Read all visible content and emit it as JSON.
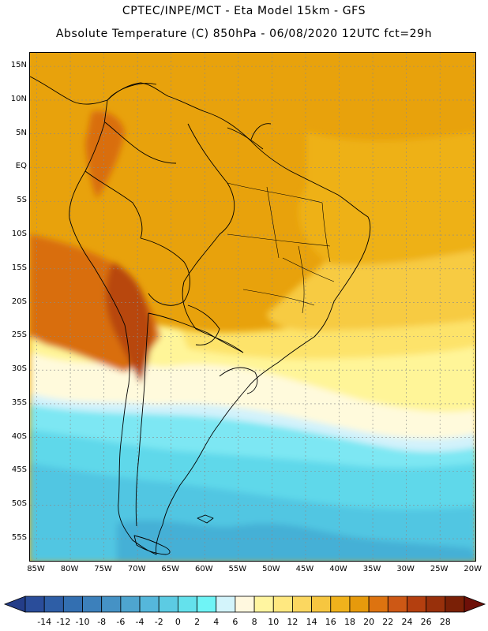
{
  "header": {
    "line1": "CPTEC/INPE/MCT -  Eta Model 15km - GFS",
    "line2": "Absolute Temperature (C) 850hPa - 06/08/2020 12UTC fct=29h"
  },
  "map": {
    "lon_range": [
      -86,
      -19.5
    ],
    "lat_range": [
      -58.5,
      17
    ],
    "lat_labels": [
      {
        "value": 15,
        "text": "15N"
      },
      {
        "value": 10,
        "text": "10N"
      },
      {
        "value": 5,
        "text": "5N"
      },
      {
        "value": 0,
        "text": "EQ"
      },
      {
        "value": -5,
        "text": "5S"
      },
      {
        "value": -10,
        "text": "10S"
      },
      {
        "value": -15,
        "text": "15S"
      },
      {
        "value": -20,
        "text": "20S"
      },
      {
        "value": -25,
        "text": "25S"
      },
      {
        "value": -30,
        "text": "30S"
      },
      {
        "value": -35,
        "text": "35S"
      },
      {
        "value": -40,
        "text": "40S"
      },
      {
        "value": -45,
        "text": "45S"
      },
      {
        "value": -50,
        "text": "50S"
      },
      {
        "value": -55,
        "text": "55S"
      }
    ],
    "lon_labels": [
      {
        "value": -85,
        "text": "85W"
      },
      {
        "value": -80,
        "text": "80W"
      },
      {
        "value": -75,
        "text": "75W"
      },
      {
        "value": -70,
        "text": "70W"
      },
      {
        "value": -65,
        "text": "65W"
      },
      {
        "value": -60,
        "text": "60W"
      },
      {
        "value": -55,
        "text": "55W"
      },
      {
        "value": -50,
        "text": "50W"
      },
      {
        "value": -45,
        "text": "45W"
      },
      {
        "value": -40,
        "text": "40W"
      },
      {
        "value": -35,
        "text": "35W"
      },
      {
        "value": -30,
        "text": "30W"
      },
      {
        "value": -25,
        "text": "25W"
      },
      {
        "value": -20,
        "text": "20W"
      }
    ]
  },
  "colorbar": {
    "labels": [
      "-14",
      "-12",
      "-10",
      "-8",
      "-6",
      "-4",
      "-2",
      "0",
      "2",
      "4",
      "6",
      "8",
      "10",
      "12",
      "14",
      "16",
      "18",
      "20",
      "22",
      "24",
      "26",
      "28"
    ],
    "colors": [
      "#2a4d9a",
      "#2e5ea6",
      "#336fb1",
      "#3c80bb",
      "#4592c5",
      "#4ea5cf",
      "#55b7db",
      "#5ccbe3",
      "#64e1ec",
      "#6ff4f6",
      "#d3f4fb",
      "#fff8df",
      "#fff5a0",
      "#ffe880",
      "#fbd760",
      "#f6c640",
      "#f0b21c",
      "#e69a0c",
      "#dd7310",
      "#cd5815",
      "#b43f0f",
      "#98300b",
      "#7a2006"
    ],
    "under_color": "#243d88",
    "over_color": "#6e1008"
  },
  "colors": {
    "temp_28": "#b84608",
    "temp_22": "#d96e0c",
    "temp_18": "#e39a0e",
    "temp_16": "#eeb114",
    "temp_14": "#f7cb42",
    "temp_12": "#fde36a",
    "temp_10": "#fff598",
    "temp_8": "#fffadc",
    "temp_6": "#d2f2fb",
    "temp_4": "#7de7f3",
    "temp_2": "#5fd8ea",
    "temp_0": "#51c6e2",
    "temp_m2": "#44b0d6"
  }
}
